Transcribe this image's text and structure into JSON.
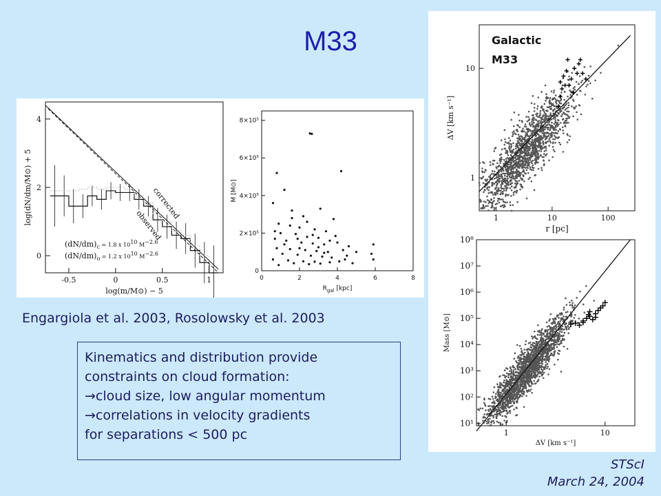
{
  "title": "M33",
  "citation": "Engargiola et al. 2003, Rosolowsky et al. 2003",
  "note": {
    "line1": "Kinematics and distribution provide",
    "line2": "constraints on cloud formation:",
    "bullet1": "cloud size, low angular momentum",
    "bullet2": "correlations in velocity gradients",
    "line5": "for separations < 500 pc",
    "arrow_glyph": "→"
  },
  "footer": {
    "org": "STScI",
    "date": "March 24, 2004"
  },
  "legend": {
    "galactic": "Galactic",
    "m33": "M33",
    "galactic_color": "#7a7a7a",
    "m33_color": "#111111"
  },
  "chart_data": [
    {
      "type": "bar",
      "id": "mass-spectrum",
      "xlabel": "log(m/M⊙) − 5",
      "ylabel": "log(dN/dm/M⊙) + 5",
      "xlim": [
        -0.75,
        1.15
      ],
      "ylim": [
        -0.5,
        4.5
      ],
      "xticks": [
        "-0.5",
        "0",
        "0.5",
        "1"
      ],
      "xtick_values": [
        -0.5,
        0,
        0.5,
        1
      ],
      "yticks": [
        "0",
        "2",
        "4"
      ],
      "ytick_values": [
        0,
        2,
        4
      ],
      "series": [
        {
          "name": "observed",
          "bin_edges": [
            -0.7,
            -0.6,
            -0.5,
            -0.4,
            -0.3,
            -0.2,
            -0.1,
            0.0,
            0.1,
            0.2,
            0.3,
            0.4,
            0.5,
            0.6,
            0.7,
            0.8,
            0.9,
            1.0,
            1.1
          ],
          "values": [
            1.75,
            1.75,
            1.45,
            1.45,
            1.75,
            1.65,
            1.9,
            1.85,
            1.85,
            1.65,
            1.45,
            1.05,
            0.85,
            0.6,
            0.5,
            0.15,
            -0.2,
            -0.5
          ],
          "errors": [
            0.9,
            0.6,
            0.5,
            0.35,
            0.3,
            0.3,
            0.25,
            0.25,
            0.25,
            0.3,
            0.3,
            0.35,
            0.35,
            0.4,
            0.45,
            0.5,
            0.6,
            0.8
          ]
        },
        {
          "name": "corrected",
          "bin_edges": [
            -0.7,
            -0.6,
            -0.5,
            -0.4,
            -0.3,
            -0.2,
            -0.1,
            0.0,
            0.1,
            0.2,
            0.3,
            0.4,
            0.5,
            0.6,
            0.7,
            0.8,
            0.9,
            1.0,
            1.1
          ],
          "values": [
            1.9,
            1.9,
            1.9,
            1.95,
            2.0,
            1.95,
            2.0,
            2.0,
            1.95,
            1.75,
            1.55,
            1.2,
            1.0,
            0.75,
            0.6,
            0.3,
            0.0,
            -0.3
          ]
        }
      ],
      "fits": [
        {
          "name": "corrected",
          "eq_left": "(dN/dm)",
          "sub": "c",
          "eq_mid": " = 1.8 x 10",
          "exp1": "10",
          "unit": "M",
          "exp2": "−2.6",
          "x0": -0.75,
          "y0": 4.4,
          "x1": 1.1,
          "y1": -0.4
        },
        {
          "name": "observed",
          "eq_left": "(dN/dm)",
          "sub": "o",
          "eq_mid": " = 1.2 x 10",
          "exp1": "10",
          "unit": "M",
          "exp2": "−2.6",
          "x0": -0.72,
          "y0": 4.3,
          "x1": 1.1,
          "y1": -0.5
        }
      ],
      "annotations": [
        "corrected",
        "observed"
      ]
    },
    {
      "type": "scatter",
      "id": "mass-vs-radius",
      "xlabel": "R",
      "xlabel_sub": "gal",
      "xlabel_unit": " [kpc]",
      "ylabel": "M [M⊙]",
      "xlim": [
        0,
        8
      ],
      "ylim": [
        0,
        850000
      ],
      "xticks": [
        "0",
        "2",
        "4",
        "6",
        "8"
      ],
      "xtick_values": [
        0,
        2,
        4,
        6,
        8
      ],
      "yticks": [
        "0",
        "2×10⁵",
        "4×10⁵",
        "6×10⁵",
        "8×10⁵"
      ],
      "ytick_values": [
        0,
        200000,
        400000,
        600000,
        800000
      ],
      "points": [
        [
          2.55,
          730000
        ],
        [
          2.65,
          728000
        ],
        [
          0.8,
          520000
        ],
        [
          4.2,
          530000
        ],
        [
          1.2,
          430000
        ],
        [
          0.6,
          360000
        ],
        [
          1.6,
          320000
        ],
        [
          3.1,
          330000
        ],
        [
          2.2,
          290000
        ],
        [
          3.8,
          275000
        ],
        [
          0.9,
          250000
        ],
        [
          1.5,
          240000
        ],
        [
          2.0,
          230000
        ],
        [
          2.8,
          220000
        ],
        [
          3.4,
          210000
        ],
        [
          1.0,
          200000
        ],
        [
          1.8,
          195000
        ],
        [
          2.4,
          180000
        ],
        [
          3.0,
          175000
        ],
        [
          3.9,
          185000
        ],
        [
          0.7,
          170000
        ],
        [
          1.3,
          160000
        ],
        [
          2.1,
          150000
        ],
        [
          2.7,
          145000
        ],
        [
          3.3,
          140000
        ],
        [
          4.0,
          150000
        ],
        [
          4.6,
          130000
        ],
        [
          0.8,
          120000
        ],
        [
          1.5,
          115000
        ],
        [
          2.3,
          110000
        ],
        [
          2.9,
          105000
        ],
        [
          3.5,
          100000
        ],
        [
          4.3,
          110000
        ],
        [
          5.0,
          100000
        ],
        [
          1.1,
          90000
        ],
        [
          1.9,
          85000
        ],
        [
          2.6,
          80000
        ],
        [
          3.2,
          75000
        ],
        [
          3.7,
          70000
        ],
        [
          4.5,
          80000
        ],
        [
          0.6,
          60000
        ],
        [
          1.4,
          55000
        ],
        [
          2.2,
          50000
        ],
        [
          2.8,
          48000
        ],
        [
          3.6,
          45000
        ],
        [
          4.1,
          50000
        ],
        [
          5.8,
          90000
        ],
        [
          5.9,
          60000
        ],
        [
          1.7,
          40000
        ],
        [
          2.5,
          35000
        ],
        [
          3.1,
          38000
        ],
        [
          0.9,
          30000
        ],
        [
          4.8,
          40000
        ],
        [
          2.0,
          120000
        ],
        [
          1.2,
          140000
        ],
        [
          3.0,
          125000
        ],
        [
          2.4,
          260000
        ],
        [
          1.6,
          280000
        ],
        [
          0.7,
          210000
        ],
        [
          3.6,
          160000
        ],
        [
          5.9,
          140000
        ],
        [
          4.4,
          60000
        ],
        [
          2.7,
          190000
        ],
        [
          1.9,
          170000
        ],
        [
          3.3,
          95000
        ]
      ]
    },
    {
      "type": "scatter",
      "id": "dv-vs-r",
      "xlabel": "r [pc]",
      "ylabel": "ΔV [km s⁻¹]",
      "xscale": "log",
      "yscale": "log",
      "xlim": [
        0.5,
        300
      ],
      "ylim": [
        0.5,
        25
      ],
      "xticks": [
        "1",
        "10",
        "100"
      ],
      "xtick_values": [
        1,
        10,
        100
      ],
      "yticks": [
        "1",
        "10"
      ],
      "ytick_values": [
        1,
        10
      ],
      "galactic_cloud": {
        "center": [
          3.5,
          1.8
        ],
        "count": 1600
      },
      "fit": {
        "x0": 0.5,
        "y0": 0.75,
        "x1": 250,
        "y1": 20
      },
      "m33_points": [
        [
          14,
          7.5
        ],
        [
          16,
          8.5
        ],
        [
          18,
          9.5
        ],
        [
          20,
          7
        ],
        [
          22,
          8
        ],
        [
          25,
          10
        ],
        [
          28,
          9
        ],
        [
          14,
          5.5
        ],
        [
          15,
          6.5
        ],
        [
          17,
          7
        ],
        [
          30,
          11
        ],
        [
          35,
          9
        ],
        [
          40,
          8
        ],
        [
          13,
          4.5
        ],
        [
          19,
          12
        ],
        [
          24,
          6
        ],
        [
          32,
          12
        ]
      ]
    },
    {
      "type": "scatter",
      "id": "mass-vs-dv",
      "xlabel": "ΔV [km s⁻¹]",
      "ylabel": "Mass [M⊙]",
      "xscale": "log",
      "yscale": "log",
      "xlim": [
        0.5,
        20
      ],
      "ylim": [
        8,
        100000000
      ],
      "xticks": [
        "1",
        "10"
      ],
      "xtick_values": [
        1,
        10
      ],
      "yticks": [
        "10¹",
        "10²",
        "10³",
        "10⁴",
        "10⁵",
        "10⁶",
        "10⁷",
        "10⁸"
      ],
      "ytick_values": [
        10,
        100,
        1000,
        10000,
        100000,
        1000000,
        10000000,
        100000000
      ],
      "galactic_cloud": {
        "center": [
          1.6,
          1000
        ],
        "count": 2000
      },
      "fit": {
        "x0": 0.5,
        "y0": 5,
        "x1": 18,
        "y1": 100000000
      },
      "m33_points": [
        [
          4.5,
          60000
        ],
        [
          5,
          65000
        ],
        [
          6,
          80000
        ],
        [
          6.5,
          100000
        ],
        [
          7,
          120000
        ],
        [
          7.5,
          90000
        ],
        [
          8,
          150000
        ],
        [
          8.5,
          200000
        ],
        [
          9,
          250000
        ],
        [
          9.5,
          300000
        ],
        [
          6,
          70000
        ],
        [
          7,
          180000
        ],
        [
          5.5,
          55000
        ],
        [
          10,
          400000
        ],
        [
          8,
          110000
        ],
        [
          6.8,
          140000
        ]
      ]
    }
  ]
}
